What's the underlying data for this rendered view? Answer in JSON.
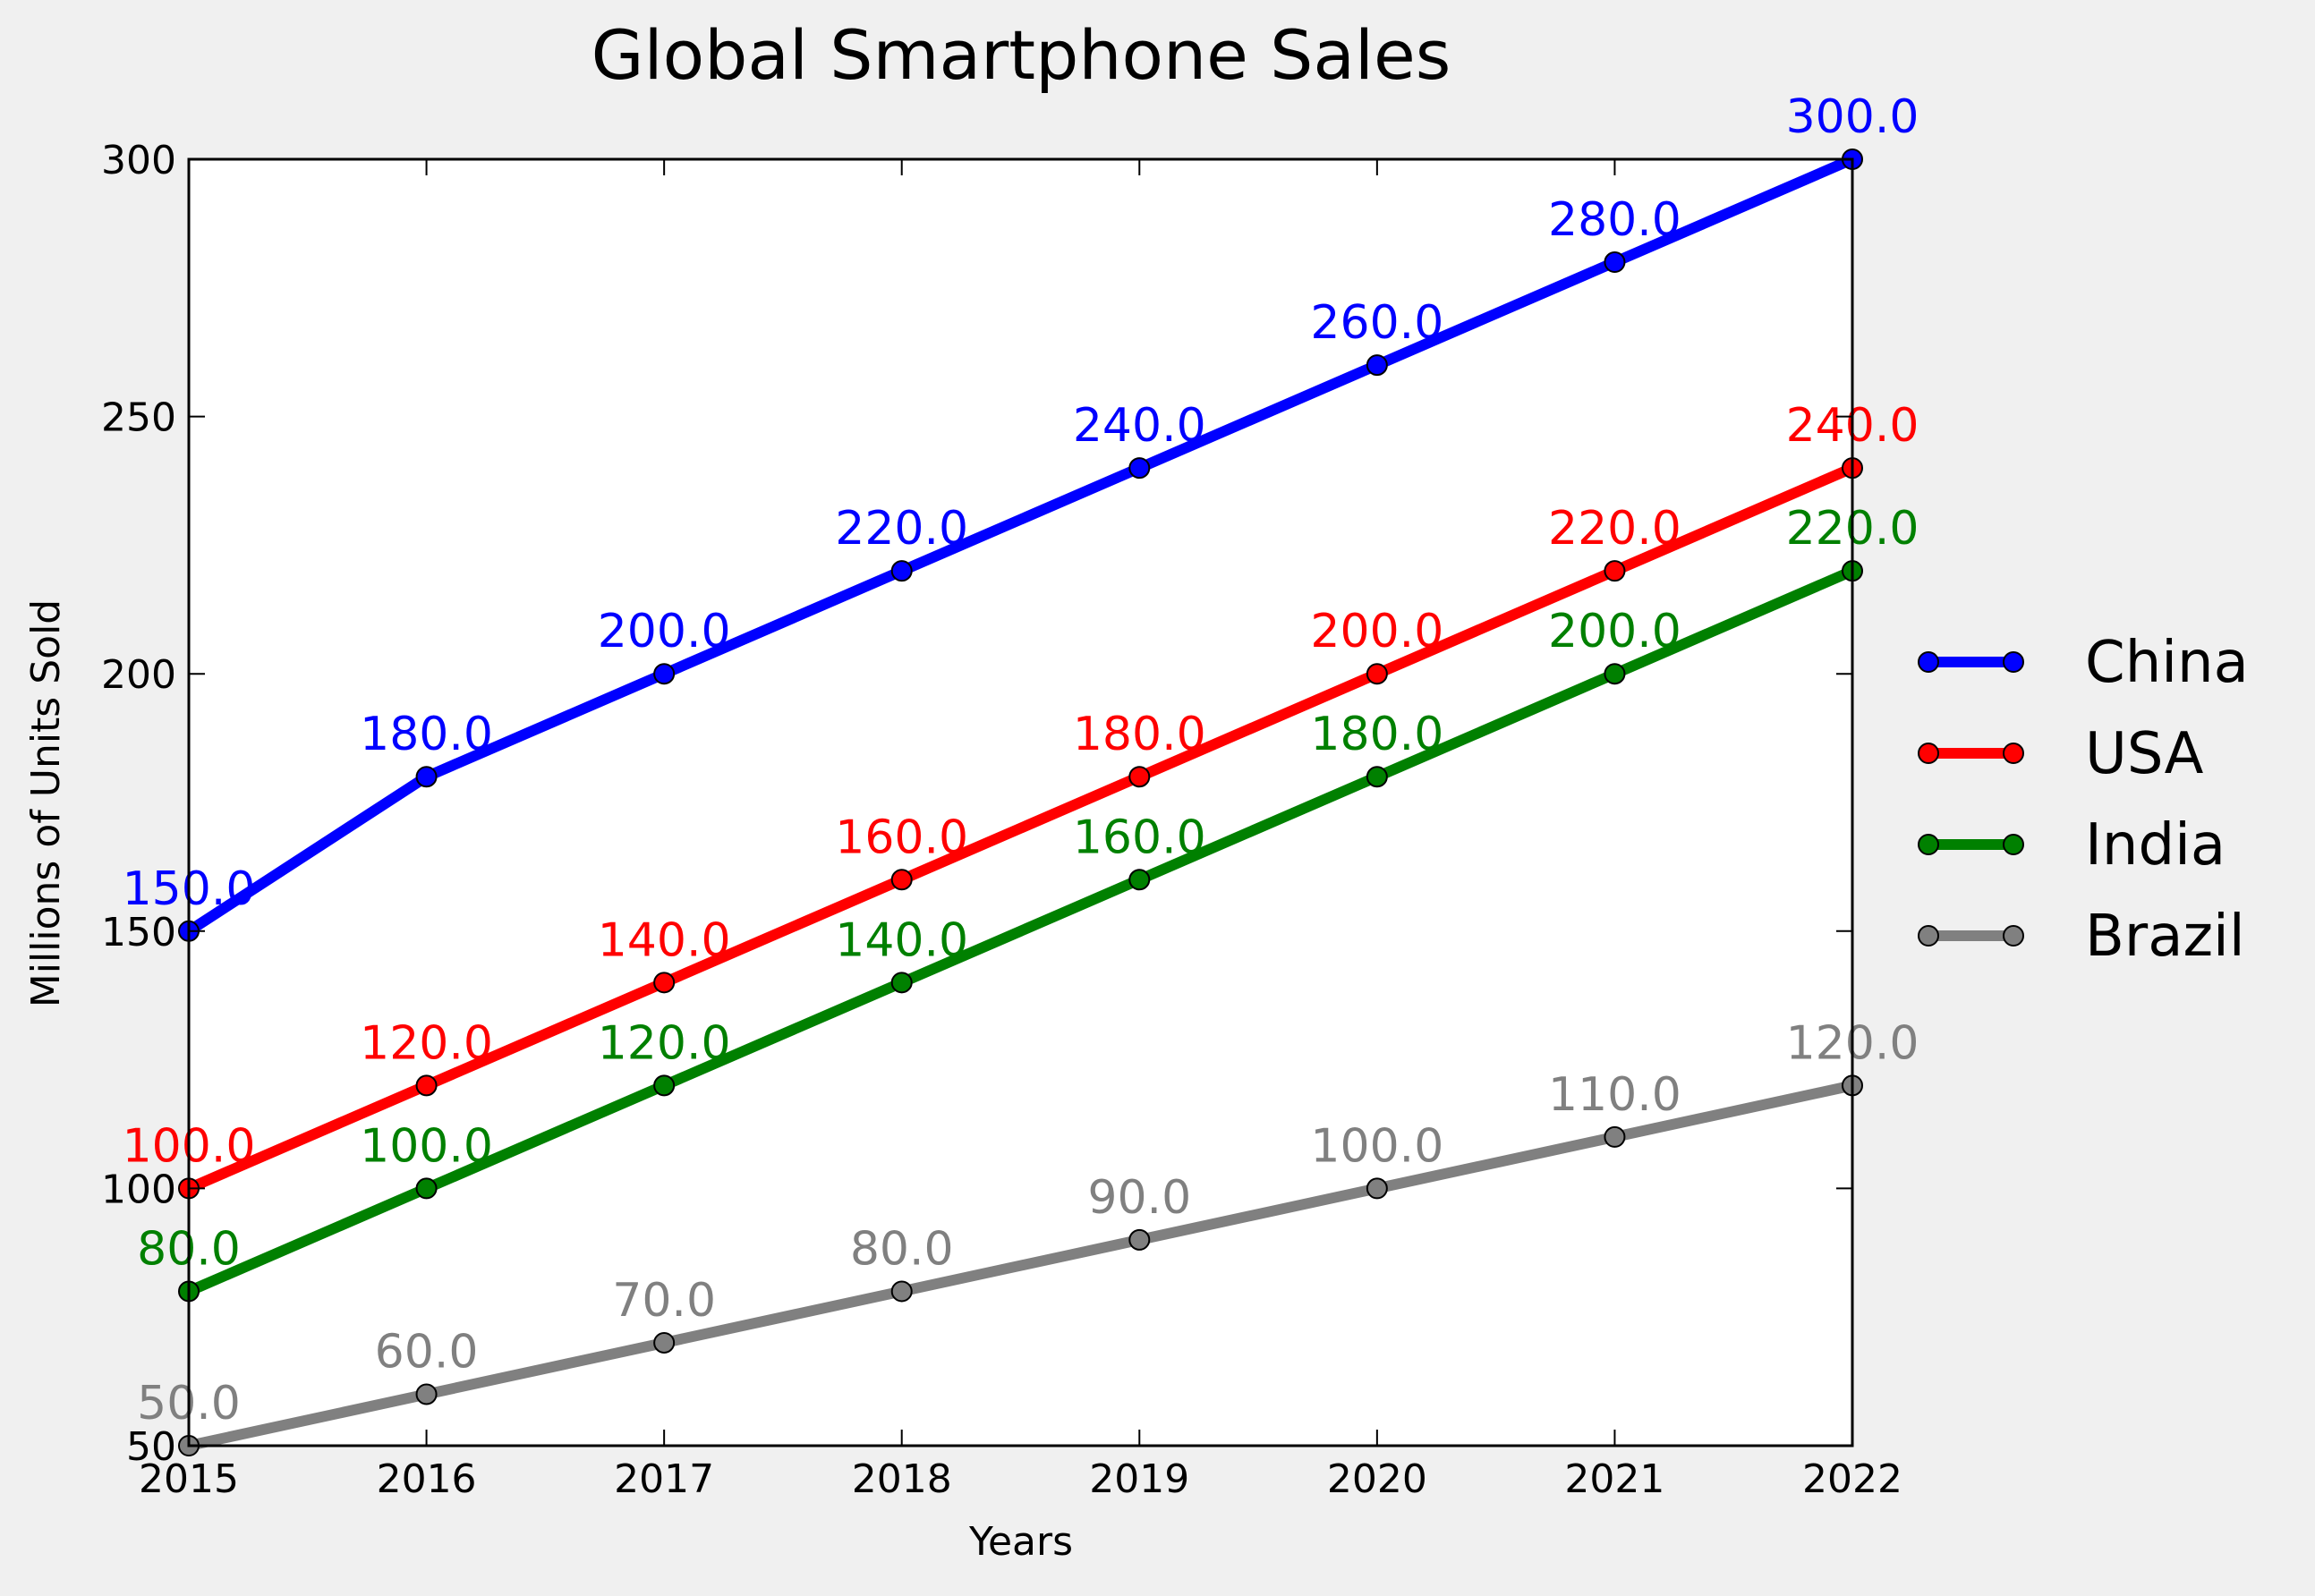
{
  "chart_data": {
    "type": "line",
    "title": "Global Smartphone Sales",
    "xlabel": "Years",
    "ylabel": "Millions of Units Sold",
    "x": [
      2015,
      2016,
      2017,
      2018,
      2019,
      2020,
      2021,
      2022
    ],
    "x_tick_labels": [
      "2015",
      "2016",
      "2017",
      "2018",
      "2019",
      "2020",
      "2021",
      "2022"
    ],
    "y_ticks": [
      50,
      100,
      150,
      200,
      250,
      300
    ],
    "y_tick_labels": [
      "50",
      "100",
      "150",
      "200",
      "250",
      "300"
    ],
    "xlim": [
      2015,
      2022
    ],
    "ylim": [
      50,
      300
    ],
    "grid": false,
    "legend_position": "right",
    "series": [
      {
        "name": "China",
        "color": "#0000ff",
        "values": [
          150,
          180,
          200,
          220,
          240,
          260,
          280,
          300
        ],
        "labels": [
          "150.0",
          "180.0",
          "200.0",
          "220.0",
          "240.0",
          "260.0",
          "280.0",
          "300.0"
        ]
      },
      {
        "name": "USA",
        "color": "#ff0000",
        "values": [
          100,
          120,
          140,
          160,
          180,
          200,
          220,
          240
        ],
        "labels": [
          "100.0",
          "120.0",
          "140.0",
          "160.0",
          "180.0",
          "200.0",
          "220.0",
          "240.0"
        ]
      },
      {
        "name": "India",
        "color": "#008000",
        "values": [
          80,
          100,
          120,
          140,
          160,
          180,
          200,
          220
        ],
        "labels": [
          "80.0",
          "100.0",
          "120.0",
          "140.0",
          "160.0",
          "180.0",
          "200.0",
          "220.0"
        ]
      },
      {
        "name": "Brazil",
        "color": "#808080",
        "values": [
          50,
          60,
          70,
          80,
          90,
          100,
          110,
          120
        ],
        "labels": [
          "50.0",
          "60.0",
          "70.0",
          "80.0",
          "90.0",
          "100.0",
          "110.0",
          "120.0"
        ]
      }
    ]
  }
}
